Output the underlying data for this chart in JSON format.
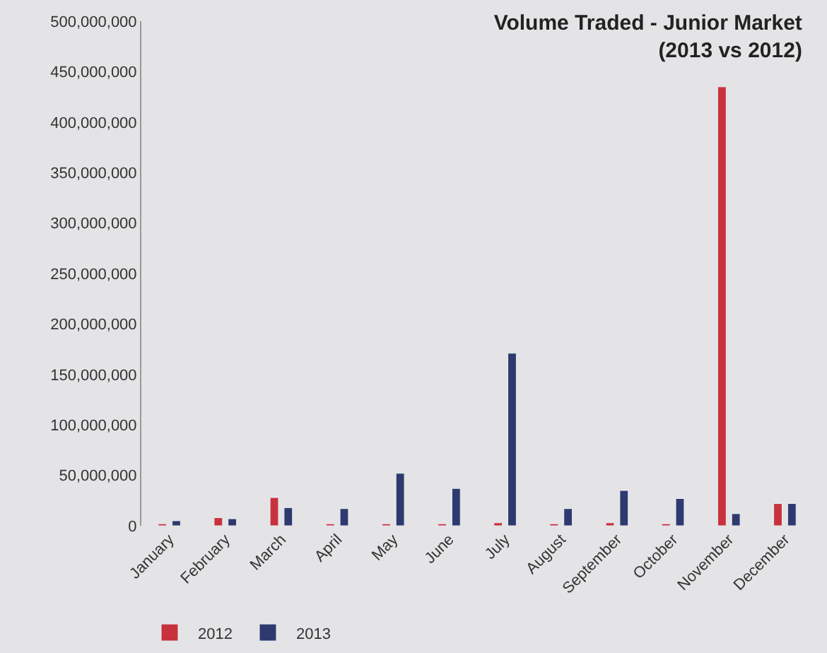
{
  "chart_data": {
    "type": "bar",
    "title": "Volume Traded - Junior Market\n(2013 vs 2012)",
    "categories": [
      "January",
      "February",
      "March",
      "April",
      "May",
      "June",
      "July",
      "August",
      "September",
      "October",
      "November",
      "December"
    ],
    "series": [
      {
        "name": "2012",
        "color": "#c8323c",
        "values": [
          2000000,
          8000000,
          28000000,
          2000000,
          2000000,
          2000000,
          3000000,
          2000000,
          3000000,
          2000000,
          435000000,
          22000000
        ]
      },
      {
        "name": "2013",
        "color": "#2e3a6e",
        "values": [
          5000000,
          7000000,
          18000000,
          17000000,
          52000000,
          37000000,
          171000000,
          17000000,
          35000000,
          27000000,
          12000000,
          22000000
        ]
      }
    ],
    "ylim": [
      0,
      500000000
    ],
    "yticks": [
      {
        "value": 0,
        "label": "0"
      },
      {
        "value": 50000000,
        "label": "50,000,000"
      },
      {
        "value": 100000000,
        "label": "100,000,000"
      },
      {
        "value": 150000000,
        "label": "150,000,000"
      },
      {
        "value": 200000000,
        "label": "200,000,000"
      },
      {
        "value": 250000000,
        "label": "250,000,000"
      },
      {
        "value": 300000000,
        "label": "300,000,000"
      },
      {
        "value": 350000000,
        "label": "350,000,000"
      },
      {
        "value": 400000000,
        "label": "400,000,000"
      },
      {
        "value": 450000000,
        "label": "450,000,000"
      },
      {
        "value": 500000000,
        "label": "500,000,000"
      }
    ],
    "grid": false,
    "legend": "bottom left"
  }
}
